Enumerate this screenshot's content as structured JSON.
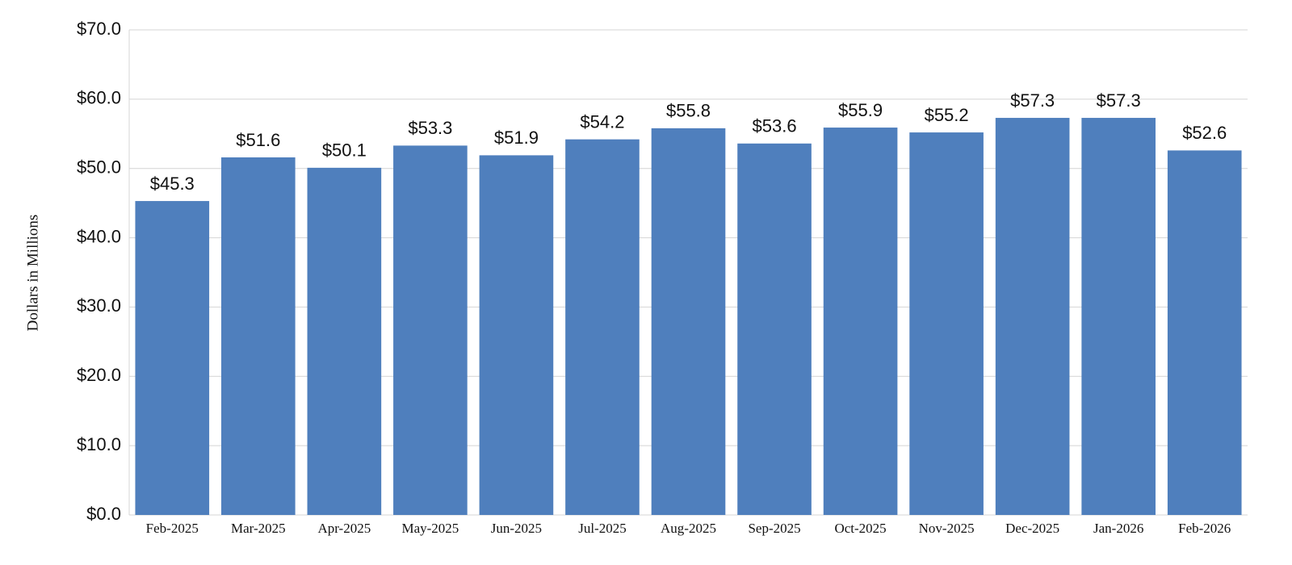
{
  "chart_data": {
    "type": "bar",
    "y_label": "Dollars in Millions",
    "categories": [
      "Feb-2025",
      "Mar-2025",
      "Apr-2025",
      "May-2025",
      "Jun-2025",
      "Jul-2025",
      "Aug-2025",
      "Sep-2025",
      "Oct-2025",
      "Nov-2025",
      "Dec-2025",
      "Jan-2026",
      "Feb-2026"
    ],
    "values": [
      45.3,
      51.6,
      50.1,
      53.3,
      51.9,
      54.2,
      55.8,
      53.6,
      55.9,
      55.2,
      57.3,
      57.3,
      52.6
    ],
    "value_labels": [
      "$45.3",
      "$51.6",
      "$50.1",
      "$53.3",
      "$51.9",
      "$54.2",
      "$55.8",
      "$53.6",
      "$55.9",
      "$55.2",
      "$57.3",
      "$57.3",
      "$52.6"
    ],
    "color": "#4f7fbd",
    "ylim": [
      0,
      70
    ],
    "yticks": [
      {
        "value": 0,
        "label": "$0.0"
      },
      {
        "value": 10,
        "label": "$10.0"
      },
      {
        "value": 20,
        "label": "$20.0"
      },
      {
        "value": 30,
        "label": "$30.0"
      },
      {
        "value": 40,
        "label": "$40.0"
      },
      {
        "value": 50,
        "label": "$50.0"
      },
      {
        "value": 60,
        "label": "$60.0"
      },
      {
        "value": 70,
        "label": "$70.0"
      }
    ],
    "grid": true
  }
}
